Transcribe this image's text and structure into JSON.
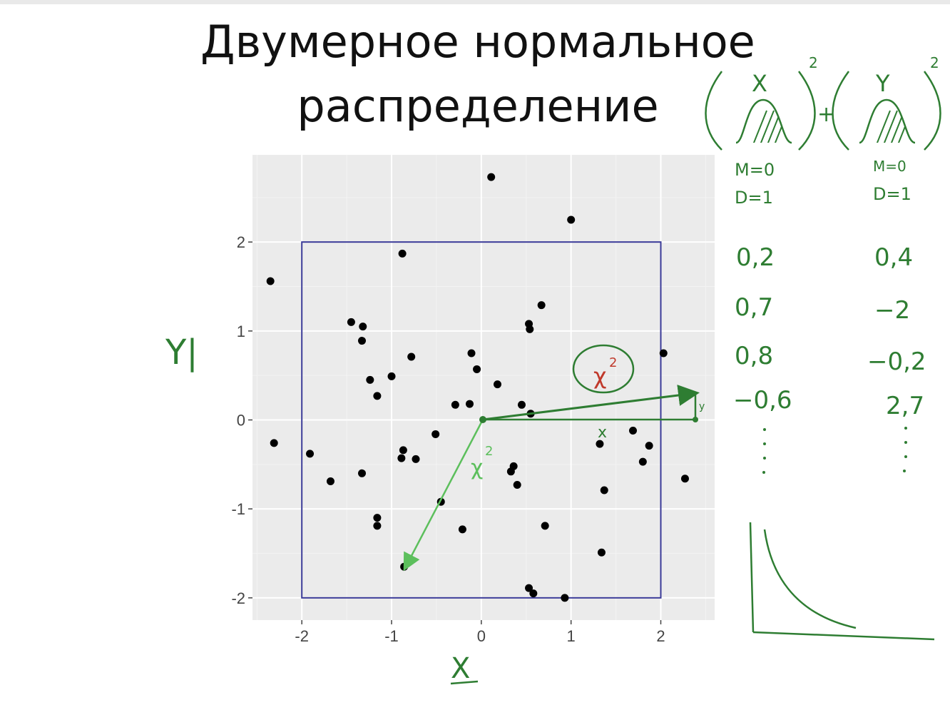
{
  "title": {
    "line1": "Двумерное нормальное",
    "line2": "распределение"
  },
  "colors": {
    "background": "#ffffff",
    "panel": "#ebebeb",
    "grid": "#f5f5f5",
    "points": "#000000",
    "box": "#3b3b98",
    "ink_green": "#2e7d32",
    "ink_light_green": "#5cbf5c",
    "ink_red": "#c0392b"
  },
  "chart_data": {
    "type": "scatter",
    "xlabel": "X",
    "ylabel": "Y",
    "xlim": [
      -2.55,
      2.6
    ],
    "ylim": [
      -2.25,
      2.98
    ],
    "x_ticks": [
      -2,
      -1,
      0,
      1,
      2
    ],
    "y_ticks": [
      -2,
      -1,
      0,
      1,
      2
    ],
    "x_tick_labels": [
      "-2",
      "-1",
      "0",
      "1",
      "2"
    ],
    "y_tick_labels": [
      "-2",
      "-1",
      "0",
      "1",
      "2"
    ],
    "grid": true,
    "box": {
      "x": [
        -2,
        2
      ],
      "y": [
        -2,
        2
      ]
    },
    "points": [
      {
        "x": 0.11,
        "y": 2.73
      },
      {
        "x": 1.0,
        "y": 2.25
      },
      {
        "x": -0.88,
        "y": 1.87
      },
      {
        "x": -2.35,
        "y": 1.56
      },
      {
        "x": 0.67,
        "y": 1.29
      },
      {
        "x": -1.45,
        "y": 1.1
      },
      {
        "x": -1.32,
        "y": 1.05
      },
      {
        "x": 0.53,
        "y": 1.08
      },
      {
        "x": 0.54,
        "y": 1.02
      },
      {
        "x": -1.33,
        "y": 0.89
      },
      {
        "x": 2.03,
        "y": 0.75
      },
      {
        "x": -0.78,
        "y": 0.71
      },
      {
        "x": -0.11,
        "y": 0.75
      },
      {
        "x": -0.05,
        "y": 0.57
      },
      {
        "x": -1.0,
        "y": 0.49
      },
      {
        "x": -1.24,
        "y": 0.45
      },
      {
        "x": 0.18,
        "y": 0.4
      },
      {
        "x": -1.16,
        "y": 0.27
      },
      {
        "x": -0.29,
        "y": 0.17
      },
      {
        "x": -0.13,
        "y": 0.18
      },
      {
        "x": 0.45,
        "y": 0.17
      },
      {
        "x": 0.55,
        "y": 0.07
      },
      {
        "x": -0.51,
        "y": -0.16
      },
      {
        "x": -2.31,
        "y": -0.26
      },
      {
        "x": 1.69,
        "y": -0.12
      },
      {
        "x": 1.32,
        "y": -0.27
      },
      {
        "x": 1.87,
        "y": -0.29
      },
      {
        "x": -1.91,
        "y": -0.38
      },
      {
        "x": -0.87,
        "y": -0.34
      },
      {
        "x": -0.89,
        "y": -0.43
      },
      {
        "x": -0.73,
        "y": -0.44
      },
      {
        "x": 1.8,
        "y": -0.47
      },
      {
        "x": 0.36,
        "y": -0.52
      },
      {
        "x": 0.33,
        "y": -0.58
      },
      {
        "x": -1.33,
        "y": -0.6
      },
      {
        "x": -1.68,
        "y": -0.69
      },
      {
        "x": 2.27,
        "y": -0.66
      },
      {
        "x": 0.4,
        "y": -0.73
      },
      {
        "x": 1.37,
        "y": -0.79
      },
      {
        "x": -0.45,
        "y": -0.92
      },
      {
        "x": -1.16,
        "y": -1.1
      },
      {
        "x": -1.16,
        "y": -1.19
      },
      {
        "x": 0.71,
        "y": -1.19
      },
      {
        "x": -0.21,
        "y": -1.23
      },
      {
        "x": 1.34,
        "y": -1.49
      },
      {
        "x": -0.86,
        "y": -1.65
      },
      {
        "x": 0.53,
        "y": -1.89
      },
      {
        "x": 0.58,
        "y": -1.95
      },
      {
        "x": 0.93,
        "y": -2.0
      }
    ]
  },
  "annotations": {
    "y_axis_note": "Y|",
    "x_axis_note": "X",
    "chi_square": "χ",
    "chi_square_exp": "2",
    "vector_x_label": "x",
    "vector_y_label": "y",
    "formula": {
      "x_label": "X",
      "y_label": "Y",
      "exp": "2",
      "plus": "+",
      "x_params": [
        "M=0",
        "D=1"
      ],
      "y_params": [
        "M=0",
        "D=1"
      ]
    },
    "samples": {
      "x": [
        "0,2",
        "0,7",
        "0,8",
        "−0,6"
      ],
      "y": [
        "0,4",
        "−2",
        "−0,2",
        "2,7"
      ]
    }
  }
}
